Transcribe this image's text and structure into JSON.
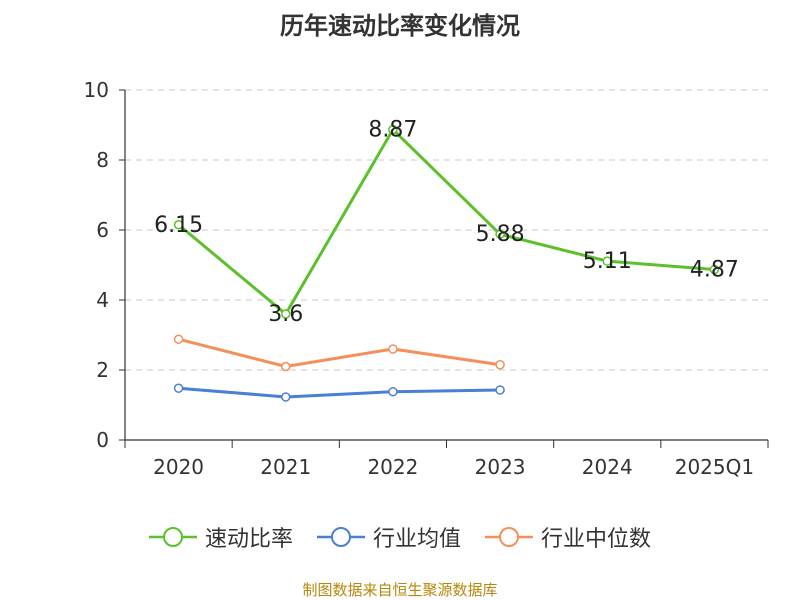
{
  "chart_data": {
    "type": "line",
    "title": "历年速动比率变化情况",
    "categories": [
      "2020",
      "2021",
      "2022",
      "2023",
      "2024",
      "2025Q1"
    ],
    "ylim": [
      0,
      10
    ],
    "yticks": [
      0,
      2,
      4,
      6,
      8,
      10
    ],
    "grid": true,
    "legend_position": "bottom",
    "series": [
      {
        "name": "速动比率",
        "color": "#5bc02b",
        "values": [
          6.15,
          3.6,
          8.87,
          5.88,
          5.11,
          4.87
        ],
        "labels": [
          "6.15",
          "3.6",
          "8.87",
          "5.88",
          "5.11",
          "4.87"
        ]
      },
      {
        "name": "行业均值",
        "color": "#4a7fd6",
        "values": [
          1.48,
          1.23,
          1.38,
          1.43,
          null,
          null
        ]
      },
      {
        "name": "行业中位数",
        "color": "#f58f5a",
        "values": [
          2.88,
          2.1,
          2.6,
          2.15,
          null,
          null
        ]
      }
    ],
    "source": "制图数据来自恒生聚源数据库"
  }
}
